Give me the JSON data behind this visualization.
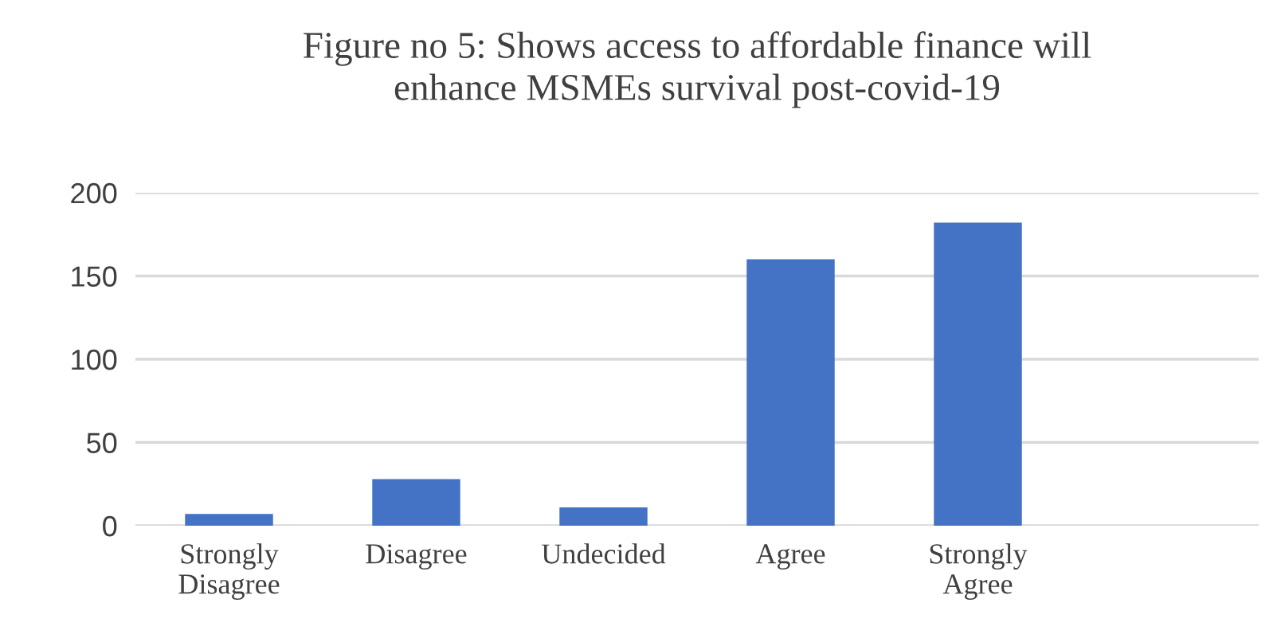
{
  "chart_data": {
    "type": "bar",
    "title": "Figure no 5: Shows access to affordable finance will\nenhance MSMEs survival post-covid-19",
    "categories": [
      "Strongly\nDisagree",
      "Disagree",
      "Undecided",
      "Agree",
      "Strongly\nAgree",
      null
    ],
    "values": [
      7,
      28,
      11,
      160,
      182,
      null
    ],
    "color": "#4472c4",
    "ylim": [
      0,
      200
    ],
    "yticks": [
      0,
      50,
      100,
      150,
      200
    ],
    "grid": "y"
  }
}
